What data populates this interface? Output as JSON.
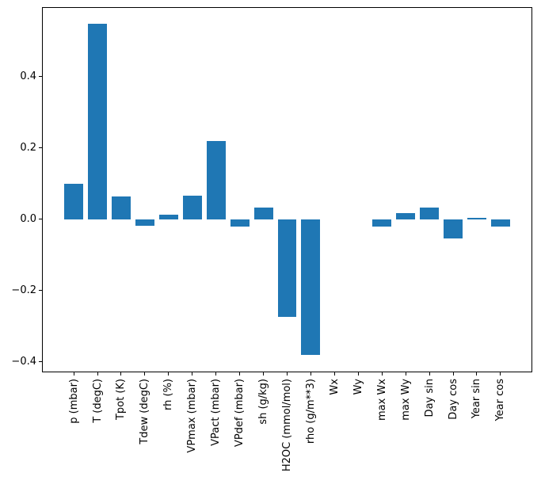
{
  "figure": {
    "background": "#ffffff"
  },
  "chart_data": {
    "type": "bar",
    "title": "",
    "xlabel": "",
    "ylabel": "",
    "categories": [
      "p (mbar)",
      "T (degC)",
      "Tpot (K)",
      "Tdew (degC)",
      "rh (%)",
      "VPmax (mbar)",
      "VPact (mbar)",
      "VPdef (mbar)",
      "sh (g/kg)",
      "H2OC (mmol/mol)",
      "rho (g/m**3)",
      "Wx",
      "Wy",
      "max Wx",
      "max Wy",
      "Day sin",
      "Day cos",
      "Year sin",
      "Year cos"
    ],
    "values": [
      0.099,
      0.548,
      0.063,
      -0.018,
      0.013,
      0.066,
      0.219,
      -0.022,
      0.033,
      -0.275,
      -0.381,
      0.0,
      0.0,
      -0.021,
      0.016,
      0.033,
      -0.055,
      0.003,
      -0.02
    ],
    "bar_color": "#1f77b4",
    "axis_color": "#000000",
    "ylim": [
      -0.43,
      0.595
    ],
    "yticks": [
      0.4,
      0.2,
      0.0,
      -0.2,
      -0.4
    ],
    "ytick_labels": [
      "0.4",
      "0.2",
      "0.0",
      "−0.2",
      "−0.4"
    ],
    "x_tick_rotation_deg": 90,
    "grid": false,
    "legend": null
  }
}
